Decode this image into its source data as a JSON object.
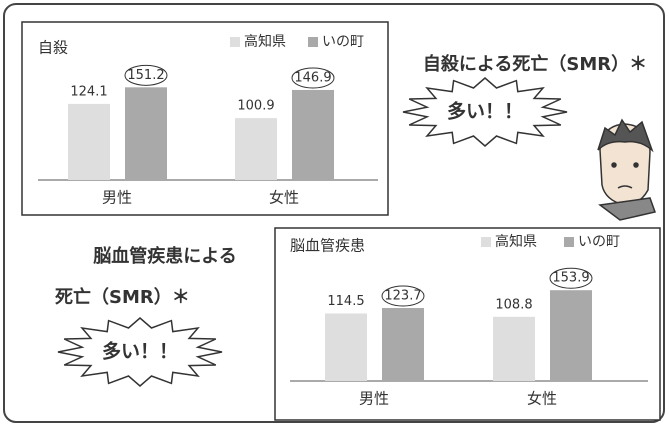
{
  "chart_data": [
    {
      "type": "bar",
      "title": "自殺",
      "categories": [
        "男性",
        "女性"
      ],
      "series": [
        {
          "name": "高知県",
          "color": "#dedede",
          "values": [
            124.1,
            100.9
          ]
        },
        {
          "name": "いの町",
          "color": "#a9a9a9",
          "values": [
            151.2,
            146.9
          ]
        }
      ]
    },
    {
      "type": "bar",
      "title": "脳血管疾患",
      "categories": [
        "男性",
        "女性"
      ],
      "series": [
        {
          "name": "高知県",
          "color": "#dedede",
          "values": [
            114.5,
            108.8
          ]
        },
        {
          "name": "いの町",
          "color": "#a9a9a9",
          "values": [
            123.7,
            153.9
          ]
        }
      ]
    }
  ],
  "callouts": [
    {
      "heading": [
        "自殺による死亡（SMR）＊"
      ],
      "burst": "多い！！"
    },
    {
      "heading": [
        "脳血管疾患による",
        "死亡（SMR）＊"
      ],
      "burst": "多い！！"
    }
  ]
}
